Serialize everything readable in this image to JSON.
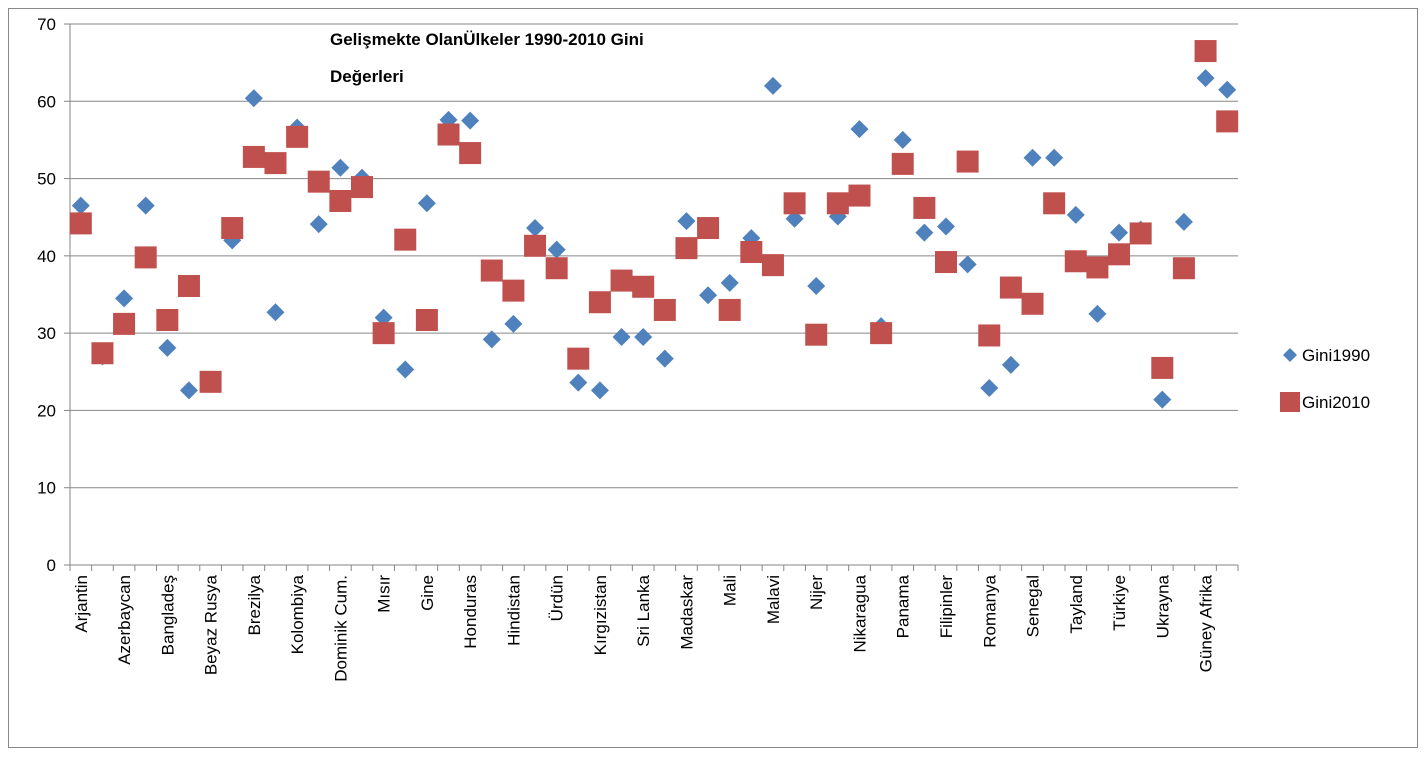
{
  "chart_data": {
    "type": "line",
    "markers_only": true,
    "title": [
      "Gelişmekte OlanÜlkeler 1990-2010 Gini",
      "Değerleri"
    ],
    "categories": [
      "Arjantin",
      null,
      "Azerbaycan",
      null,
      "Bangladeş",
      null,
      "Beyaz Rusya",
      null,
      "Brezilya",
      null,
      "Kolombiya",
      null,
      "Dominik Cum.",
      null,
      "Mısır",
      null,
      "Gine",
      null,
      "Honduras",
      null,
      "Hindistan",
      null,
      "Ürdün",
      null,
      "Kırgızistan",
      null,
      "Sri Lanka",
      null,
      "Madaskar",
      null,
      "Mali",
      null,
      "Malavi",
      null,
      "Nijer",
      null,
      "Nikaragua",
      null,
      "Panama",
      null,
      "Filipinler",
      null,
      "Romanya",
      null,
      "Senegal",
      null,
      "Tayland",
      null,
      "Türkiye",
      null,
      "Ukrayna",
      null,
      "Güney Afrika",
      null
    ],
    "series": [
      {
        "name": "Gini1990",
        "color": "#4f81bd",
        "marker": "diamond",
        "values": [
          46.5,
          27,
          34.5,
          46.5,
          28.1,
          22.6,
          23.5,
          42,
          60.4,
          32.7,
          56.6,
          44.1,
          51.4,
          50.1,
          32,
          25.3,
          46.8,
          57.6,
          57.5,
          29.2,
          31.2,
          43.6,
          40.8,
          23.6,
          22.6,
          29.5,
          29.5,
          26.7,
          44.5,
          34.9,
          36.5,
          42.3,
          62,
          44.8,
          36.1,
          45.1,
          56.4,
          30.9,
          55,
          43,
          43.8,
          38.9,
          22.9,
          25.9,
          52.7,
          52.7,
          45.3,
          32.5,
          43,
          43.4,
          21.4,
          44.4,
          63,
          61.5
        ]
      },
      {
        "name": "Gini2010",
        "color": "#c0504d",
        "marker": "square",
        "values": [
          44.2,
          27.4,
          31.2,
          39.8,
          31.7,
          36.1,
          23.7,
          43.6,
          52.8,
          52,
          55.4,
          49.6,
          47.1,
          48.9,
          30,
          42.1,
          31.7,
          55.7,
          53.3,
          38.1,
          35.5,
          41.3,
          38.4,
          26.7,
          34,
          36.8,
          36,
          33,
          41,
          43.6,
          33,
          40.5,
          38.8,
          46.8,
          29.8,
          46.8,
          47.8,
          30,
          51.9,
          46.2,
          39.2,
          52.2,
          29.7,
          35.9,
          33.8,
          46.8,
          39.3,
          38.5,
          40.2,
          42.9,
          25.5,
          38.4,
          66.5,
          57.4
        ]
      }
    ],
    "ylim": [
      0,
      70
    ],
    "yticks": [
      0,
      10,
      20,
      30,
      40,
      50,
      60,
      70
    ],
    "grid": true,
    "legend": "right"
  }
}
